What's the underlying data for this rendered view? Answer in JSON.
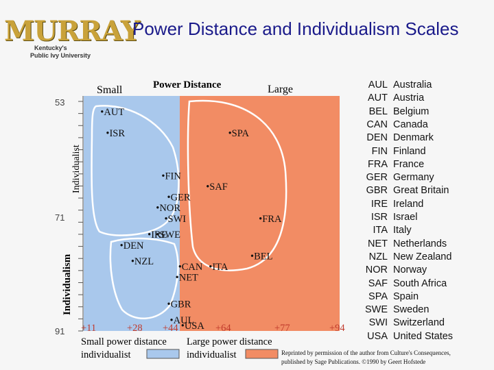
{
  "header": {
    "title": "Power Distance and Individualism Scales",
    "logo": {
      "word": "MURRAY",
      "line1": "Kentucky's",
      "line2": "Public Ivy University"
    }
  },
  "chart_data": {
    "type": "scatter",
    "title": "",
    "x_axis": {
      "label": "Power Distance",
      "end_label_left": "Small",
      "end_label_right": "Large",
      "ticks": [
        "+11",
        "+28",
        "+44",
        "+64",
        "+77",
        "+94"
      ]
    },
    "y_axis": {
      "label_top": "Individualist",
      "label_bottom": "Individualism",
      "ticks": [
        "53",
        "71",
        "91"
      ]
    },
    "points": [
      {
        "label": "AUT",
        "x": 11,
        "y": 51
      },
      {
        "label": "ISR",
        "x": 13,
        "y": 55
      },
      {
        "label": "SPA",
        "x": 57,
        "y": 55
      },
      {
        "label": "FIN",
        "x": 33,
        "y": 63
      },
      {
        "label": "SAF",
        "x": 49,
        "y": 65
      },
      {
        "label": "NOR",
        "x": 31,
        "y": 69
      },
      {
        "label": "GER",
        "x": 35,
        "y": 67
      },
      {
        "label": "SWI",
        "x": 34,
        "y": 71
      },
      {
        "label": "FRA",
        "x": 68,
        "y": 71
      },
      {
        "label": "IRE",
        "x": 28,
        "y": 74
      },
      {
        "label": "SWE",
        "x": 31,
        "y": 74
      },
      {
        "label": "DEN",
        "x": 18,
        "y": 76
      },
      {
        "label": "NZL",
        "x": 22,
        "y": 79
      },
      {
        "label": "CAN",
        "x": 39,
        "y": 80
      },
      {
        "label": "BEL",
        "x": 65,
        "y": 78
      },
      {
        "label": "ITA",
        "x": 50,
        "y": 80
      },
      {
        "label": "NET",
        "x": 38,
        "y": 82
      },
      {
        "label": "GBR",
        "x": 35,
        "y": 87
      },
      {
        "label": "AUL",
        "x": 36,
        "y": 90
      },
      {
        "label": "USA",
        "x": 40,
        "y": 91
      }
    ],
    "regions": [
      {
        "label_line1": "Small power distance",
        "label_line2": "individualist",
        "color": "#a9c8ec"
      },
      {
        "label_line1": "Large power distance",
        "label_line2": "individualist",
        "color": "#f28c64"
      }
    ],
    "grid": false
  },
  "legend": [
    {
      "code": "AUL",
      "name": "Australia"
    },
    {
      "code": "AUT",
      "name": "Austria"
    },
    {
      "code": "BEL",
      "name": "Belgium"
    },
    {
      "code": "CAN",
      "name": "Canada"
    },
    {
      "code": "DEN",
      "name": "Denmark"
    },
    {
      "code": "FIN",
      "name": "Finland"
    },
    {
      "code": "FRA",
      "name": "France"
    },
    {
      "code": "GER",
      "name": "Germany"
    },
    {
      "code": "GBR",
      "name": "Great Britain"
    },
    {
      "code": "IRE",
      "name": "Ireland"
    },
    {
      "code": "ISR",
      "name": "Israel"
    },
    {
      "code": "ITA",
      "name": "Italy"
    },
    {
      "code": "NET",
      "name": "Netherlands"
    },
    {
      "code": "NZL",
      "name": "New Zealand"
    },
    {
      "code": "NOR",
      "name": "Norway"
    },
    {
      "code": "SAF",
      "name": "South Africa"
    },
    {
      "code": "SPA",
      "name": "Spain"
    },
    {
      "code": "SWE",
      "name": "Sweden"
    },
    {
      "code": "SWI",
      "name": "Switzerland"
    },
    {
      "code": "USA",
      "name": "United States"
    }
  ],
  "credit": {
    "line1": "Reprinted by permission of the author from Culture's Consequences,",
    "line2": "published by Sage Publications. ©1990 by Geert Hofstede"
  },
  "colors": {
    "title": "#1a1a8a",
    "blue_region": "#a9c8ec",
    "orange_region": "#f28c64",
    "tick": "#c0392b"
  }
}
